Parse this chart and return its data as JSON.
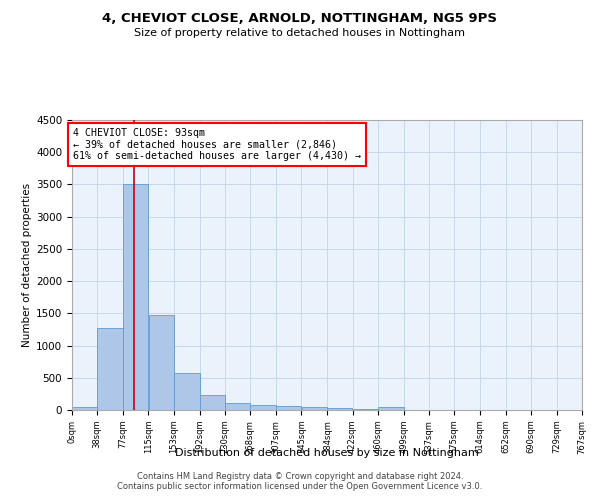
{
  "title1": "4, CHEVIOT CLOSE, ARNOLD, NOTTINGHAM, NG5 9PS",
  "title2": "Size of property relative to detached houses in Nottingham",
  "xlabel": "Distribution of detached houses by size in Nottingham",
  "ylabel": "Number of detached properties",
  "bar_color": "#aec6e8",
  "bar_edge_color": "#5b9bd5",
  "grid_color": "#c8d8e8",
  "bg_color": "#eaf2fb",
  "annotation_line1": "4 CHEVIOT CLOSE: 93sqm",
  "annotation_line2": "← 39% of detached houses are smaller (2,846)",
  "annotation_line3": "61% of semi-detached houses are larger (4,430) →",
  "vline_x": 93,
  "vline_color": "#cc0000",
  "bin_edges": [
    0,
    38,
    77,
    115,
    153,
    192,
    230,
    268,
    307,
    345,
    384,
    422,
    460,
    499,
    537,
    575,
    614,
    652,
    690,
    729,
    767
  ],
  "bin_counts": [
    40,
    1280,
    3510,
    1480,
    570,
    240,
    115,
    80,
    55,
    40,
    30,
    20,
    50,
    0,
    0,
    0,
    0,
    0,
    0,
    0
  ],
  "ylim": [
    0,
    4500
  ],
  "yticks": [
    0,
    500,
    1000,
    1500,
    2000,
    2500,
    3000,
    3500,
    4000,
    4500
  ],
  "footnote1": "Contains HM Land Registry data © Crown copyright and database right 2024.",
  "footnote2": "Contains public sector information licensed under the Open Government Licence v3.0."
}
